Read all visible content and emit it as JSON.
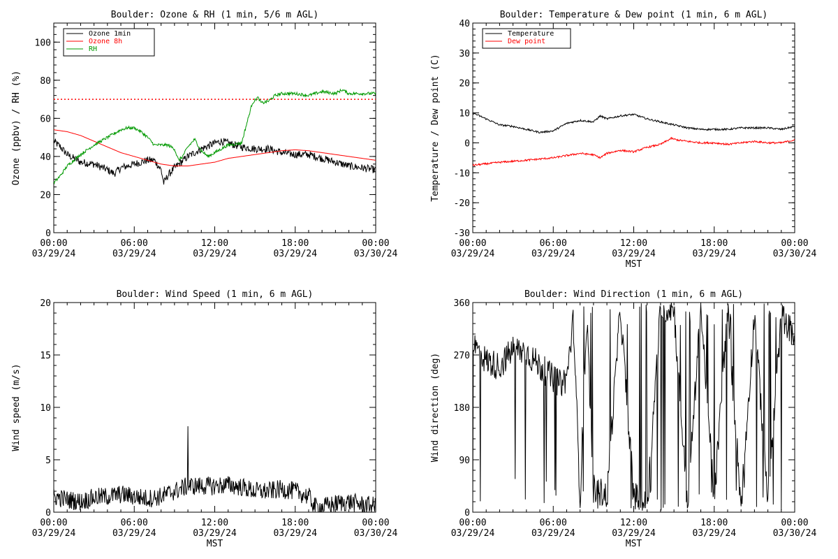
{
  "charts": [
    {
      "type": "line",
      "title": "Boulder: Ozone & RH (1 min, 5/6 m AGL)",
      "ylabel": "Ozone (ppbv) / RH (%)",
      "xlabel": "",
      "ylim": [
        0,
        110
      ],
      "yticks": [
        0,
        20,
        40,
        60,
        80,
        100
      ],
      "xlim": [
        0,
        24
      ],
      "xticks": [
        {
          "hour": 0,
          "l1": "00:00",
          "l2": "03/29/24"
        },
        {
          "hour": 6,
          "l1": "06:00",
          "l2": "03/29/24"
        },
        {
          "hour": 12,
          "l1": "12:00",
          "l2": "03/29/24"
        },
        {
          "hour": 18,
          "l1": "18:00",
          "l2": "03/29/24"
        },
        {
          "hour": 24,
          "l1": "00:00",
          "l2": "03/30/24"
        }
      ],
      "legend": "top-left",
      "hline": {
        "value": 70,
        "color": "#ff0000",
        "style": "dotted"
      },
      "series": [
        {
          "name": "Ozone 1min",
          "color": "#000000",
          "noise": 2.0,
          "points": [
            [
              0,
              48
            ],
            [
              0.5,
              45
            ],
            [
              1,
              41
            ],
            [
              2,
              37
            ],
            [
              3,
              36
            ],
            [
              4,
              33
            ],
            [
              4.5,
              31
            ],
            [
              5,
              34
            ],
            [
              6,
              36
            ],
            [
              7,
              38
            ],
            [
              7.5,
              38
            ],
            [
              8,
              33
            ],
            [
              8.2,
              26
            ],
            [
              8.5,
              30
            ],
            [
              9,
              34
            ],
            [
              10,
              40
            ],
            [
              11,
              44
            ],
            [
              12,
              47
            ],
            [
              12.5,
              48
            ],
            [
              13,
              47
            ],
            [
              14,
              45
            ],
            [
              15,
              44
            ],
            [
              16,
              44
            ],
            [
              17,
              42
            ],
            [
              18,
              41
            ],
            [
              19,
              41
            ],
            [
              20,
              39
            ],
            [
              21,
              37
            ],
            [
              22,
              35
            ],
            [
              23,
              34
            ],
            [
              24,
              33
            ]
          ]
        },
        {
          "name": "Ozone 8h",
          "color": "#ff0000",
          "noise": 0,
          "points": [
            [
              0,
              54
            ],
            [
              1,
              53
            ],
            [
              2,
              51
            ],
            [
              3,
              48
            ],
            [
              4,
              45
            ],
            [
              5,
              42
            ],
            [
              6,
              40
            ],
            [
              7,
              38
            ],
            [
              8,
              36
            ],
            [
              9,
              35
            ],
            [
              10,
              35
            ],
            [
              11,
              36
            ],
            [
              12,
              37
            ],
            [
              13,
              39
            ],
            [
              14,
              40
            ],
            [
              15,
              41
            ],
            [
              16,
              42
            ],
            [
              17,
              43
            ],
            [
              18,
              43.5
            ],
            [
              19,
              43
            ],
            [
              20,
              42
            ],
            [
              21,
              41
            ],
            [
              22,
              40
            ],
            [
              23,
              39
            ],
            [
              24,
              38
            ]
          ]
        },
        {
          "name": "RH",
          "color": "#009900",
          "noise": 0.8,
          "points": [
            [
              0,
              26
            ],
            [
              0.5,
              30
            ],
            [
              1,
              35
            ],
            [
              2,
              41
            ],
            [
              3,
              46
            ],
            [
              4,
              50
            ],
            [
              5,
              54
            ],
            [
              5.5,
              55
            ],
            [
              6,
              55
            ],
            [
              6.5,
              53
            ],
            [
              7,
              50
            ],
            [
              7.5,
              46
            ],
            [
              8,
              46
            ],
            [
              8.5,
              46
            ],
            [
              9,
              44
            ],
            [
              9.3,
              38
            ],
            [
              9.6,
              40
            ],
            [
              10,
              45
            ],
            [
              10.5,
              49
            ],
            [
              11,
              43
            ],
            [
              11.5,
              40
            ],
            [
              12,
              42
            ],
            [
              13,
              46
            ],
            [
              14,
              47
            ],
            [
              14.3,
              55
            ],
            [
              14.8,
              68
            ],
            [
              15.2,
              71
            ],
            [
              15.5,
              68
            ],
            [
              16,
              69
            ],
            [
              16.5,
              72
            ],
            [
              17,
              73
            ],
            [
              18,
              73
            ],
            [
              19,
              72
            ],
            [
              20,
              74
            ],
            [
              21,
              73
            ],
            [
              21.5,
              75
            ],
            [
              22,
              73
            ],
            [
              23,
              73
            ],
            [
              24,
              73
            ]
          ]
        }
      ]
    },
    {
      "type": "line",
      "title": "Boulder: Temperature & Dew point (1 min, 6 m AGL)",
      "ylabel": "Temperature / Dew point (C)",
      "xlabel": "MST",
      "ylim": [
        -30,
        40
      ],
      "yticks": [
        -30,
        -20,
        -10,
        0,
        10,
        20,
        30,
        40
      ],
      "xlim": [
        0,
        24
      ],
      "xticks": [
        {
          "hour": 0,
          "l1": "00:00",
          "l2": "03/29/24"
        },
        {
          "hour": 6,
          "l1": "06:00",
          "l2": "03/29/24"
        },
        {
          "hour": 12,
          "l1": "12:00",
          "l2": "03/29/24"
        },
        {
          "hour": 18,
          "l1": "18:00",
          "l2": "03/29/24"
        },
        {
          "hour": 24,
          "l1": "00:00",
          "l2": "03/30/24"
        }
      ],
      "legend": "top-left",
      "series": [
        {
          "name": "Temperature",
          "color": "#000000",
          "noise": 0.3,
          "points": [
            [
              0,
              10
            ],
            [
              1,
              8
            ],
            [
              2,
              6
            ],
            [
              3,
              5.5
            ],
            [
              4,
              4.5
            ],
            [
              5,
              3.5
            ],
            [
              6,
              4
            ],
            [
              7,
              6.5
            ],
            [
              8,
              7.5
            ],
            [
              9,
              7
            ],
            [
              9.5,
              9
            ],
            [
              10,
              8
            ],
            [
              11,
              9
            ],
            [
              12,
              9.5
            ],
            [
              13,
              8
            ],
            [
              14,
              7
            ],
            [
              15,
              6
            ],
            [
              16,
              5
            ],
            [
              17,
              4.5
            ],
            [
              18,
              4.5
            ],
            [
              19,
              4.5
            ],
            [
              20,
              5
            ],
            [
              21,
              5
            ],
            [
              22,
              5
            ],
            [
              23,
              4.5
            ],
            [
              24,
              5.5
            ]
          ]
        },
        {
          "name": "Dew point",
          "color": "#ff0000",
          "noise": 0.3,
          "points": [
            [
              0,
              -7.5
            ],
            [
              2,
              -6.5
            ],
            [
              4,
              -5.8
            ],
            [
              6,
              -5
            ],
            [
              8,
              -3.5
            ],
            [
              9,
              -4
            ],
            [
              9.5,
              -5
            ],
            [
              10,
              -3.5
            ],
            [
              11,
              -2.5
            ],
            [
              12,
              -3
            ],
            [
              13,
              -1.5
            ],
            [
              14,
              -0.5
            ],
            [
              14.8,
              1.5
            ],
            [
              15.2,
              1
            ],
            [
              16,
              0.5
            ],
            [
              17,
              0
            ],
            [
              18,
              0
            ],
            [
              19,
              -0.5
            ],
            [
              20,
              0
            ],
            [
              21,
              0.5
            ],
            [
              22,
              0
            ],
            [
              23,
              0
            ],
            [
              24,
              1
            ]
          ]
        }
      ]
    },
    {
      "type": "line",
      "title": "Boulder: Wind Speed (1 min, 6 m AGL)",
      "ylabel": "Wind speed (m/s)",
      "xlabel": "MST",
      "ylim": [
        0,
        20
      ],
      "yticks": [
        0,
        5,
        10,
        15,
        20
      ],
      "xlim": [
        0,
        24
      ],
      "xticks": [
        {
          "hour": 0,
          "l1": "00:00",
          "l2": "03/29/24"
        },
        {
          "hour": 6,
          "l1": "06:00",
          "l2": "03/29/24"
        },
        {
          "hour": 12,
          "l1": "12:00",
          "l2": "03/29/24"
        },
        {
          "hour": 18,
          "l1": "18:00",
          "l2": "03/29/24"
        },
        {
          "hour": 24,
          "l1": "00:00",
          "l2": "03/30/24"
        }
      ],
      "series": [
        {
          "name": "",
          "color": "#000000",
          "noise": 0.9,
          "spike": 8.2,
          "spikeAt": 10.0,
          "points": [
            [
              0,
              1.5
            ],
            [
              1,
              1.2
            ],
            [
              2,
              1.0
            ],
            [
              3,
              1.4
            ],
            [
              4,
              1.5
            ],
            [
              5,
              1.7
            ],
            [
              6,
              1.5
            ],
            [
              7,
              1.3
            ],
            [
              8,
              1.5
            ],
            [
              9,
              2.0
            ],
            [
              10,
              2.5
            ],
            [
              11,
              2.5
            ],
            [
              12,
              2.5
            ],
            [
              13,
              2.6
            ],
            [
              14,
              2.4
            ],
            [
              15,
              2.0
            ],
            [
              16,
              2.0
            ],
            [
              17,
              2.2
            ],
            [
              18,
              2.0
            ],
            [
              19,
              1.5
            ],
            [
              19.5,
              0.5
            ],
            [
              20,
              0.5
            ],
            [
              21,
              0.8
            ],
            [
              22,
              1.0
            ],
            [
              23,
              0.7
            ],
            [
              24,
              0.6
            ]
          ]
        }
      ]
    },
    {
      "type": "line",
      "title": "Boulder: Wind Direction (1 min, 6 m AGL)",
      "ylabel": "Wind direction (deg)",
      "xlabel": "MST",
      "ylim": [
        0,
        360
      ],
      "yticks": [
        0,
        90,
        180,
        270,
        360
      ],
      "xlim": [
        0,
        24
      ],
      "xticks": [
        {
          "hour": 0,
          "l1": "00:00",
          "l2": "03/29/24"
        },
        {
          "hour": 6,
          "l1": "06:00",
          "l2": "03/29/24"
        },
        {
          "hour": 12,
          "l1": "12:00",
          "l2": "03/29/24"
        },
        {
          "hour": 18,
          "l1": "18:00",
          "l2": "03/29/24"
        },
        {
          "hour": 24,
          "l1": "00:00",
          "l2": "03/30/24"
        }
      ],
      "series": [
        {
          "name": "",
          "color": "#000000",
          "noise": 25,
          "wrap": true,
          "points": [
            [
              0,
              290
            ],
            [
              1,
              260
            ],
            [
              2,
              250
            ],
            [
              3,
              280
            ],
            [
              4,
              275
            ],
            [
              5,
              250
            ],
            [
              6,
              230
            ],
            [
              6.5,
              220
            ],
            [
              7,
              230
            ],
            [
              7.5,
              330
            ],
            [
              8,
              20
            ],
            [
              8.5,
              340
            ],
            [
              9,
              40
            ],
            [
              10,
              30
            ],
            [
              11,
              350
            ],
            [
              12,
              30
            ],
            [
              13,
              10
            ],
            [
              14,
              350
            ],
            [
              15,
              350
            ],
            [
              16,
              10
            ],
            [
              17,
              350
            ],
            [
              18,
              20
            ],
            [
              19,
              350
            ],
            [
              20,
              10
            ],
            [
              21,
              340
            ],
            [
              22,
              20
            ],
            [
              23,
              340
            ],
            [
              24,
              300
            ]
          ]
        }
      ]
    }
  ]
}
